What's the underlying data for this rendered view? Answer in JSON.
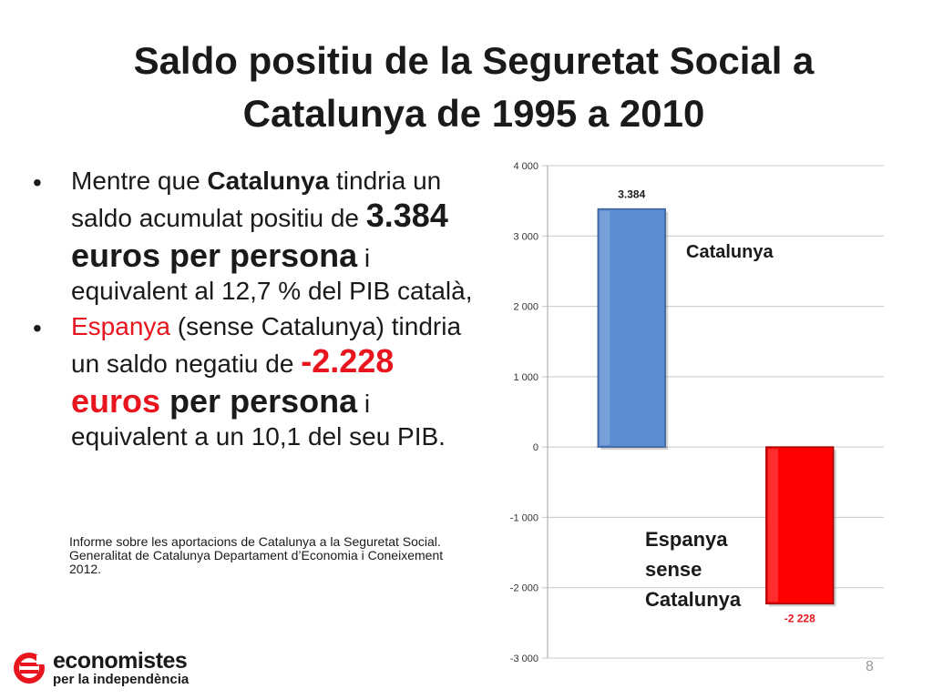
{
  "title": {
    "line1": "Saldo positiu de la Seguretat Social a",
    "line2": "Catalunya de 1995 a 2010"
  },
  "bullets": {
    "b1": {
      "t1": "Mentre que ",
      "t2": "Catalunya",
      "t3": " tindria un saldo acumulat positiu de ",
      "t4": "3.384 euros per persona",
      "t5": " i equivalent al 12,7 % del PIB català,"
    },
    "b2": {
      "t1": "Espanya",
      "t2": " (sense Catalunya) tindria un saldo negatiu de ",
      "t3": "-2.228 euros",
      "t4": " per persona",
      "t5": " i equivalent a un 10,1 del seu PIB."
    }
  },
  "source": {
    "line1": "Informe sobre les aportacions de Catalunya a la Seguretat Social.",
    "line2": "Generalitat de Catalunya Departament d’Economia i Coneixement",
    "line3": "2012."
  },
  "logo": {
    "line1": "economistes",
    "line2": "per la independència"
  },
  "page_number": "8",
  "colors": {
    "catalunya_bar": "#5b8bd0",
    "espanya_bar": "#ff0000",
    "red_text": "#e8141e"
  },
  "chart_data": {
    "type": "bar",
    "categories": [
      "Catalunya",
      "Espanya sense Catalunya"
    ],
    "values": [
      3384,
      -2228
    ],
    "data_labels": [
      "3.384",
      "-2 228"
    ],
    "category_annotations": [
      "Catalunya",
      "Espanya sense Catalunya"
    ],
    "yticks": [
      "4 000",
      "3 000",
      "2 000",
      "1 000",
      "0",
      "-1 000",
      "-2 000",
      "-3 000"
    ],
    "ylim": [
      -3000,
      4000
    ],
    "grid": true,
    "title": "",
    "xlabel": "",
    "ylabel": ""
  }
}
